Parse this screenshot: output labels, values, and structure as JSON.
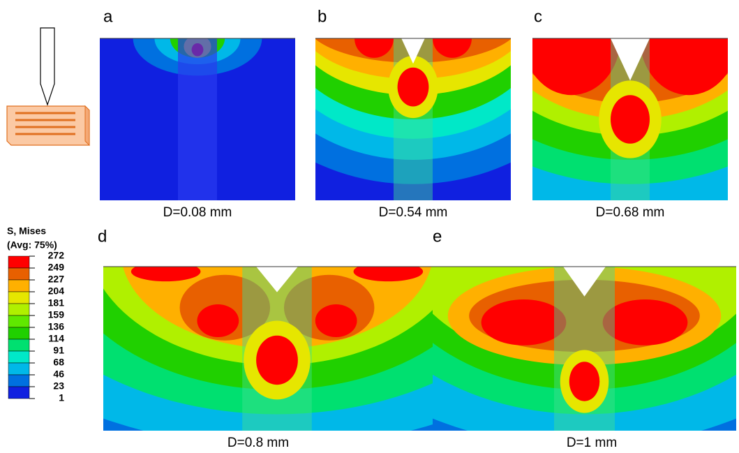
{
  "panels": [
    {
      "label": "a",
      "caption": "D=0.08 mm"
    },
    {
      "label": "b",
      "caption": "D=0.54 mm"
    },
    {
      "label": "c",
      "caption": "D=0.68 mm"
    },
    {
      "label": "d",
      "caption": "D=0.8 mm"
    },
    {
      "label": "e",
      "caption": "D=1 mm"
    }
  ],
  "legend": {
    "title": "S, Mises",
    "subtitle": "(Avg: 75%)",
    "values": [
      272,
      249,
      227,
      204,
      181,
      159,
      136,
      114,
      91,
      68,
      46,
      23,
      1
    ]
  }
}
